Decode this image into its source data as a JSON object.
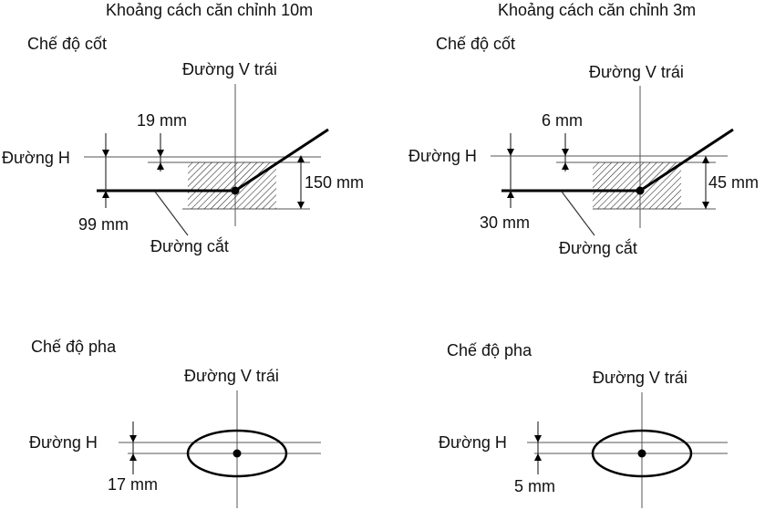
{
  "headings": {
    "left": "Khoảng cách căn chỉnh 10m",
    "right": "Khoảng cách căn chỉnh 3m"
  },
  "panels": {
    "low_left": {
      "mode": "Chế độ cốt",
      "v_line": "Đường V trái",
      "h_line": "Đường H",
      "cutoff": "Đường cắt",
      "offset_top": "19 mm",
      "offset_bottom": "99 mm",
      "zone_height": "150 mm"
    },
    "low_right": {
      "mode": "Chế độ cốt",
      "v_line": "Đường V trái",
      "h_line": "Đường H",
      "cutoff": "Đường cắt",
      "offset_top": "6 mm",
      "offset_bottom": "30 mm",
      "zone_height": "45 mm"
    },
    "high_left": {
      "mode": "Chế độ pha",
      "v_line": "Đường V trái",
      "h_line": "Đường H",
      "offset": "17 mm"
    },
    "high_right": {
      "mode": "Chế độ pha",
      "v_line": "Đường V trái",
      "h_line": "Đường H",
      "offset": "5 mm"
    }
  },
  "colors": {
    "ink": "#000000",
    "guide": "#555555",
    "background": "#ffffff"
  }
}
